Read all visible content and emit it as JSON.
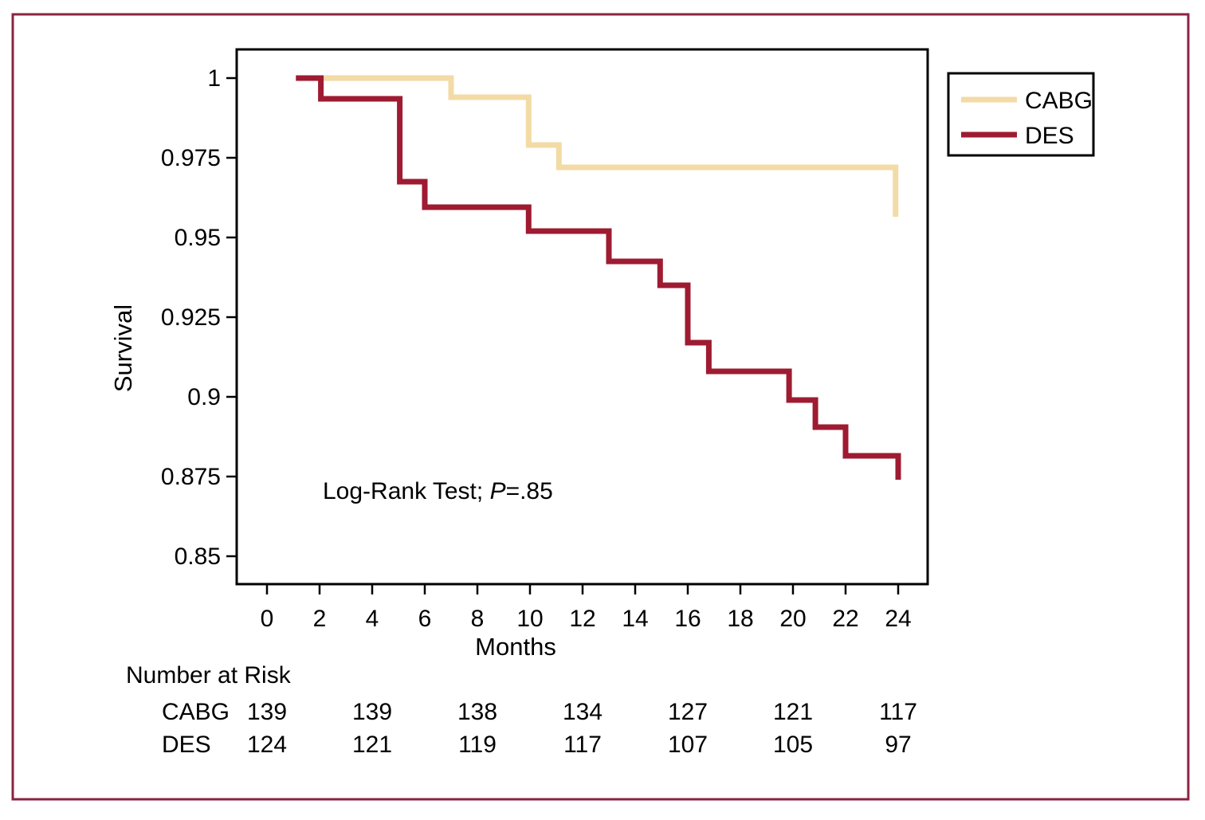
{
  "figure": {
    "kind": "kaplan-meier-survival-figure",
    "background": "#ffffff",
    "frame_color": "#8c2342",
    "plot_border_color": "#000000"
  },
  "chart_data": {
    "type": "line",
    "subtype": "step-survival-curves",
    "title": "",
    "xlabel": "Months",
    "ylabel": "Survival",
    "xlim": [
      -1.15,
      25.15
    ],
    "ylim": [
      0.84125,
      1.009
    ],
    "grid": false,
    "legend_position": "outside-top-right",
    "xticks": [
      0,
      2,
      4,
      6,
      8,
      10,
      12,
      14,
      16,
      18,
      20,
      22,
      24
    ],
    "ytick_labels": [
      "1",
      "0.975",
      "0.95",
      "0.925",
      "0.9",
      "0.875",
      "0.85"
    ],
    "series": [
      {
        "name": "CABG",
        "color": "#f3dba6",
        "steps": [
          [
            1.1,
            1.0
          ],
          [
            7.0,
            1.0
          ],
          [
            7.0,
            0.994
          ],
          [
            9.95,
            0.994
          ],
          [
            9.95,
            0.979
          ],
          [
            11.1,
            0.979
          ],
          [
            11.1,
            0.972
          ],
          [
            23.9,
            0.972
          ],
          [
            23.9,
            0.9565
          ]
        ]
      },
      {
        "name": "DES",
        "color": "#9e1b32",
        "steps": [
          [
            1.1,
            1.0
          ],
          [
            2.05,
            1.0
          ],
          [
            2.05,
            0.9935
          ],
          [
            5.05,
            0.9935
          ],
          [
            5.05,
            0.9675
          ],
          [
            6.0,
            0.9675
          ],
          [
            6.0,
            0.9595
          ],
          [
            9.95,
            0.9595
          ],
          [
            9.95,
            0.952
          ],
          [
            13.0,
            0.952
          ],
          [
            13.0,
            0.9425
          ],
          [
            14.95,
            0.9425
          ],
          [
            14.95,
            0.935
          ],
          [
            16.0,
            0.935
          ],
          [
            16.0,
            0.917
          ],
          [
            16.8,
            0.917
          ],
          [
            16.8,
            0.908
          ],
          [
            19.85,
            0.908
          ],
          [
            19.85,
            0.899
          ],
          [
            20.85,
            0.899
          ],
          [
            20.85,
            0.8905
          ],
          [
            22.0,
            0.8905
          ],
          [
            22.0,
            0.8815
          ],
          [
            24.0,
            0.8815
          ],
          [
            24.0,
            0.874
          ]
        ]
      }
    ],
    "annotation": {
      "prefix": "Log-Rank Test; ",
      "p_symbol": "P",
      "suffix": "=.85"
    },
    "legend": {
      "items": [
        {
          "label": "CABG"
        },
        {
          "label": "DES"
        }
      ]
    },
    "risk_table": {
      "title": "Number at Risk",
      "time_points": [
        0,
        4,
        8,
        12,
        16,
        20,
        24
      ],
      "rows": [
        {
          "label": "CABG",
          "values": [
            139,
            139,
            138,
            134,
            127,
            121,
            117
          ]
        },
        {
          "label": "DES",
          "values": [
            124,
            121,
            119,
            117,
            107,
            105,
            97
          ]
        }
      ]
    }
  }
}
